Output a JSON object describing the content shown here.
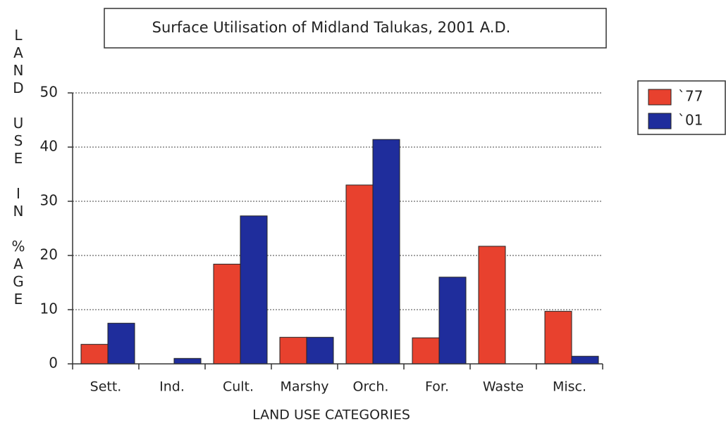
{
  "chart_data": {
    "type": "bar",
    "title": "Surface Utilisation of Midland Talukas, 2001 A.D.",
    "x_label": "LAND USE CATEGORIES",
    "y_label": "LAND USE IN %AGE",
    "categories": [
      "Sett.",
      "Ind.",
      "Cult.",
      "Marshy",
      "Orch.",
      "For.",
      "Waste",
      "Misc."
    ],
    "series": [
      {
        "name": "`77",
        "color": "#e8412e",
        "values": [
          3.6,
          0,
          18.4,
          4.9,
          33,
          4.8,
          21.7,
          9.7
        ]
      },
      {
        "name": "`01",
        "color": "#1f2d9c",
        "values": [
          7.5,
          1.0,
          27.3,
          4.9,
          41.4,
          16,
          0,
          1.4
        ]
      }
    ],
    "ylim": [
      0,
      50
    ],
    "yticks": [
      0,
      10,
      20,
      30,
      40,
      50
    ],
    "grid": true,
    "legend": "right"
  }
}
